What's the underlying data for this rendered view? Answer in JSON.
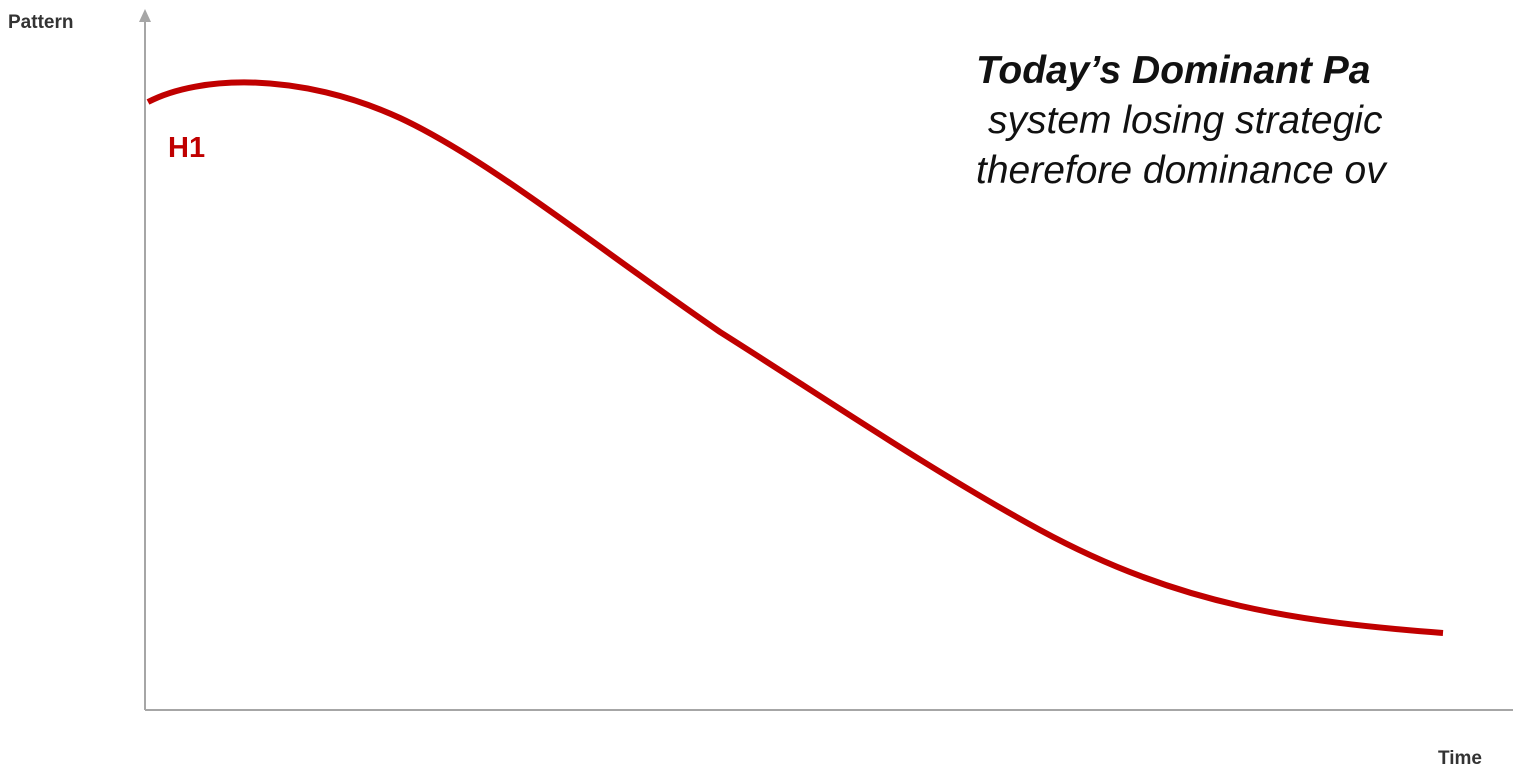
{
  "axes": {
    "y_title": "Pattern",
    "x_title": "Time",
    "color": "#a6a6a6"
  },
  "curve": {
    "label": "H1",
    "color": "#c00000",
    "shape": "declining-s-curve"
  },
  "callout": {
    "heading": "Today’s Dominant Pa",
    "line1": "system losing strategic",
    "line2": "therefore dominance ov"
  }
}
